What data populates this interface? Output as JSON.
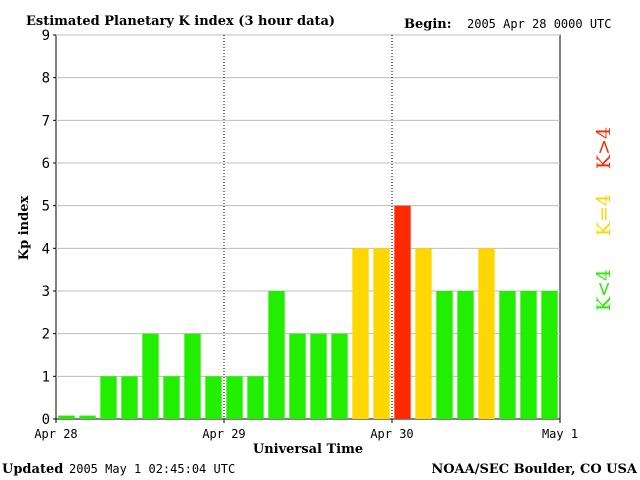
{
  "chart_data": {
    "type": "bar",
    "title": "Estimated Planetary K index (3 hour data)",
    "begin_label": "Begin:",
    "begin_value": "2005 Apr 28 0000 UTC",
    "ylabel": "Kp index",
    "xlabel": "Universal Time",
    "ylim": [
      0,
      9
    ],
    "yticks": [
      "0",
      "1",
      "2",
      "3",
      "4",
      "5",
      "6",
      "7",
      "8",
      "9"
    ],
    "xticks": [
      "Apr 28",
      "Apr 29",
      "Apr 30",
      "May 1"
    ],
    "values": [
      0,
      0,
      1,
      1,
      2,
      1,
      2,
      1,
      1,
      1,
      3,
      2,
      2,
      2,
      4,
      4,
      5,
      4,
      3,
      3,
      4,
      3,
      3,
      3
    ],
    "legend": {
      "green_label": "K<4",
      "yellow_label": "K=4",
      "red_label": "K>4"
    },
    "colors": {
      "green": "#22ee00",
      "yellow": "#ffd700",
      "red": "#ff2a00"
    },
    "updated_label": "Updated",
    "updated_value": "2005 May  1 02:45:04 UTC",
    "source": "NOAA/SEC Boulder, CO USA"
  }
}
